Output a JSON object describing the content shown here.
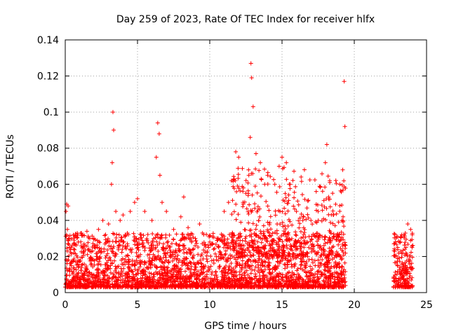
{
  "chart_data": {
    "type": "scatter",
    "title": "Day 259 of 2023, Rate Of TEC Index for receiver hlfx",
    "xlabel": "GPS time / hours",
    "ylabel": "ROTI / TECUs",
    "xlim": [
      0,
      25
    ],
    "ylim": [
      0,
      0.14
    ],
    "xticks": [
      0,
      5,
      10,
      15,
      20,
      25
    ],
    "yticks": [
      0,
      0.02,
      0.04,
      0.06,
      0.08,
      0.1,
      0.12,
      0.14
    ],
    "ytick_labels": [
      "0",
      "0.02",
      "0.04",
      "0.06",
      "0.08",
      "0.1",
      "0.12",
      "0.14"
    ],
    "grid": true,
    "marker": "plus",
    "color": "#ff0000",
    "gaps": [
      [
        19.4,
        22.6
      ]
    ],
    "series": [
      {
        "x": [
          0.05,
          0.1,
          0.15,
          0.2,
          0.25,
          0.3,
          0.6,
          0.9,
          1.2,
          1.5,
          1.7,
          2.0,
          2.3,
          2.6,
          3.0,
          3.2,
          3.25,
          3.3,
          3.35,
          3.5,
          3.8,
          4.0,
          4.5,
          4.8,
          5.0,
          5.5,
          6.0,
          6.3,
          6.4,
          6.5,
          6.55,
          6.7,
          7.0,
          7.5,
          8.0,
          8.2,
          8.5,
          9.0,
          9.3,
          9.5,
          10.0,
          10.5,
          11.0,
          11.3,
          11.5,
          11.8,
          12.0,
          12.3,
          12.5,
          12.8,
          12.85,
          12.9,
          13.0,
          13.2,
          13.5,
          13.8,
          14.0,
          14.5,
          14.8,
          15.0,
          15.3,
          15.5,
          16.0,
          16.5,
          17.0,
          17.5,
          18.0,
          18.1,
          18.3,
          18.5,
          19.0,
          19.2,
          19.3,
          19.35,
          23.0,
          23.2,
          23.5,
          23.7,
          23.9,
          24.0
        ],
        "y": [
          0.045,
          0.049,
          0.035,
          0.048,
          0.03,
          0.025,
          0.022,
          0.028,
          0.032,
          0.034,
          0.03,
          0.026,
          0.035,
          0.04,
          0.038,
          0.06,
          0.072,
          0.1,
          0.09,
          0.045,
          0.04,
          0.043,
          0.045,
          0.05,
          0.052,
          0.045,
          0.04,
          0.075,
          0.094,
          0.088,
          0.065,
          0.05,
          0.045,
          0.035,
          0.042,
          0.053,
          0.036,
          0.03,
          0.038,
          0.033,
          0.028,
          0.03,
          0.045,
          0.05,
          0.062,
          0.078,
          0.075,
          0.05,
          0.055,
          0.086,
          0.127,
          0.119,
          0.103,
          0.077,
          0.072,
          0.06,
          0.065,
          0.06,
          0.07,
          0.075,
          0.072,
          0.06,
          0.045,
          0.042,
          0.04,
          0.045,
          0.072,
          0.082,
          0.062,
          0.055,
          0.06,
          0.068,
          0.117,
          0.092,
          0.025,
          0.028,
          0.024,
          0.038,
          0.035,
          0.025
        ]
      }
    ]
  }
}
